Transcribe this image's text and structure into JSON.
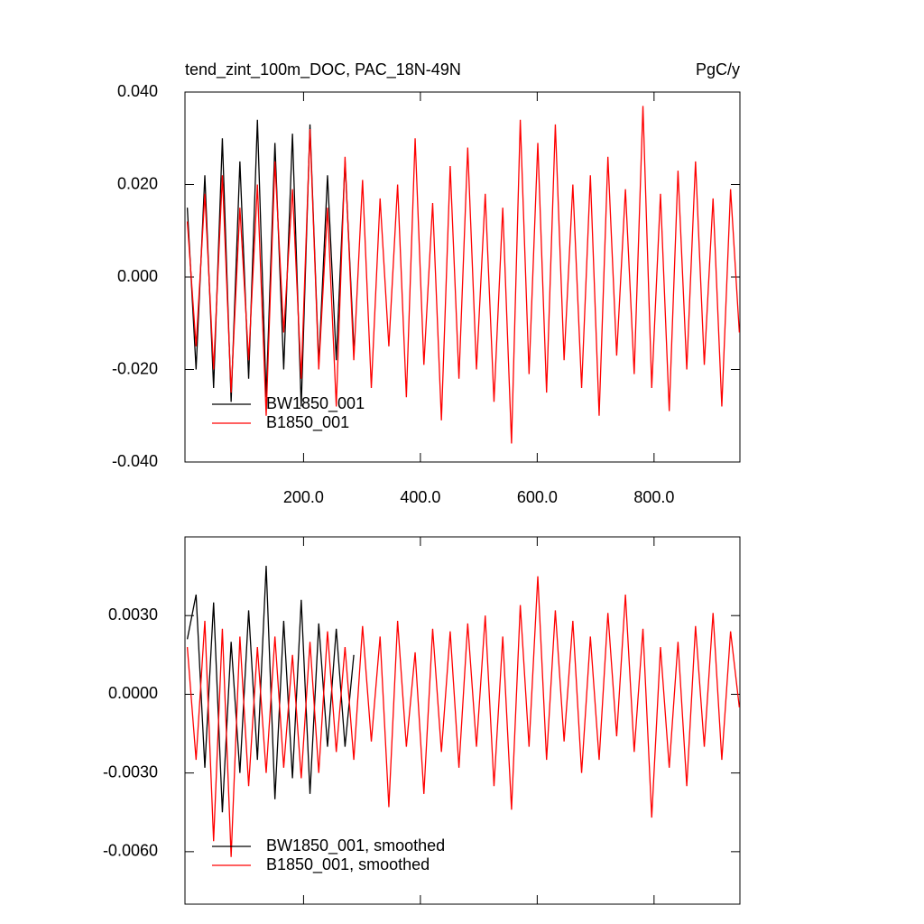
{
  "chart_data": [
    {
      "type": "line",
      "title": "tend_zint_100m_DOC, PAC_18N-49N",
      "units": "PgC/y",
      "x": [
        1,
        16,
        31,
        46,
        61,
        76,
        91,
        106,
        121,
        136,
        151,
        166,
        181,
        196,
        211,
        226,
        241,
        256,
        271,
        286,
        301,
        316,
        331,
        346,
        361,
        376,
        391,
        406,
        421,
        436,
        451,
        466,
        481,
        496,
        511,
        526,
        541,
        556,
        571,
        586,
        601,
        616,
        631,
        646,
        661,
        676,
        691,
        706,
        721,
        736,
        751,
        766,
        781,
        796,
        811,
        826,
        841,
        856,
        871,
        886,
        901,
        916,
        931,
        946
      ],
      "xlim": [
        -3,
        947
      ],
      "xticks": [
        {
          "value": 200,
          "label": "200.0"
        },
        {
          "value": 400,
          "label": "400.0"
        },
        {
          "value": 600,
          "label": "600.0"
        },
        {
          "value": 800,
          "label": "800.0"
        }
      ],
      "ylim": [
        -0.04,
        0.04
      ],
      "yticks": [
        {
          "value": -0.04,
          "label": "-0.040"
        },
        {
          "value": -0.02,
          "label": "-0.020"
        },
        {
          "value": 0,
          "label": "0.000"
        },
        {
          "value": 0.02,
          "label": "0.020"
        },
        {
          "value": 0.04,
          "label": "0.040"
        }
      ],
      "legend": "lower left",
      "series": [
        {
          "name": "BW1850_001",
          "color": "#000000",
          "values": [
            0.015,
            -0.02,
            0.022,
            -0.024,
            0.03,
            -0.027,
            0.025,
            -0.022,
            0.034,
            -0.026,
            0.029,
            -0.02,
            0.031,
            -0.028,
            0.033,
            -0.019,
            0.022,
            -0.018,
            0.025,
            -0.015,
            null,
            null,
            null,
            null,
            null,
            null,
            null,
            null,
            null,
            null,
            null,
            null,
            null,
            null,
            null,
            null,
            null,
            null,
            null,
            null,
            null,
            null,
            null,
            null,
            null,
            null,
            null,
            null,
            null,
            null,
            null,
            null,
            null,
            null,
            null,
            null,
            null,
            null,
            null,
            null,
            null,
            null,
            null,
            null
          ]
        },
        {
          "name": "B1850_001",
          "color": "#ff0000",
          "values": [
            0.012,
            -0.015,
            0.018,
            -0.02,
            0.022,
            -0.025,
            0.015,
            -0.018,
            0.02,
            -0.03,
            0.025,
            -0.012,
            0.019,
            -0.022,
            0.032,
            -0.02,
            0.015,
            -0.028,
            0.026,
            -0.018,
            0.021,
            -0.024,
            0.017,
            -0.015,
            0.02,
            -0.026,
            0.03,
            -0.019,
            0.016,
            -0.031,
            0.024,
            -0.022,
            0.028,
            -0.02,
            0.018,
            -0.027,
            0.015,
            -0.036,
            0.034,
            -0.021,
            0.029,
            -0.025,
            0.033,
            -0.018,
            0.02,
            -0.024,
            0.022,
            -0.03,
            0.026,
            -0.017,
            0.019,
            -0.021,
            0.037,
            -0.024,
            0.018,
            -0.029,
            0.023,
            -0.02,
            0.025,
            -0.019,
            0.017,
            -0.028,
            0.019,
            -0.012
          ]
        }
      ]
    },
    {
      "type": "line",
      "x": [
        1,
        16,
        31,
        46,
        61,
        76,
        91,
        106,
        121,
        136,
        151,
        166,
        181,
        196,
        211,
        226,
        241,
        256,
        271,
        286,
        301,
        316,
        331,
        346,
        361,
        376,
        391,
        406,
        421,
        436,
        451,
        466,
        481,
        496,
        511,
        526,
        541,
        556,
        571,
        586,
        601,
        616,
        631,
        646,
        661,
        676,
        691,
        706,
        721,
        736,
        751,
        766,
        781,
        796,
        811,
        826,
        841,
        856,
        871,
        886,
        901,
        916,
        931,
        946
      ],
      "xlim": [
        -3,
        947
      ],
      "xticks": [
        200,
        400,
        600,
        800
      ],
      "xtick_labels": false,
      "ylim": [
        -0.008,
        0.006
      ],
      "yticks": [
        {
          "value": -0.006,
          "label": "-0.0060"
        },
        {
          "value": -0.003,
          "label": "-0.0030"
        },
        {
          "value": 0,
          "label": "0.0000"
        },
        {
          "value": 0.003,
          "label": "0.0030"
        }
      ],
      "legend": "lower left",
      "series": [
        {
          "name": "BW1850_001, smoothed",
          "color": "#000000",
          "values": [
            0.0021,
            0.0038,
            -0.0028,
            0.0035,
            -0.0045,
            0.002,
            -0.003,
            0.0032,
            -0.0025,
            0.0049,
            -0.004,
            0.0028,
            -0.0032,
            0.0036,
            -0.0038,
            0.0027,
            -0.002,
            0.0025,
            -0.002,
            0.0015,
            null,
            null,
            null,
            null,
            null,
            null,
            null,
            null,
            null,
            null,
            null,
            null,
            null,
            null,
            null,
            null,
            null,
            null,
            null,
            null,
            null,
            null,
            null,
            null,
            null,
            null,
            null,
            null,
            null,
            null,
            null,
            null,
            null,
            null,
            null,
            null,
            null,
            null,
            null,
            null,
            null,
            null,
            null,
            null
          ]
        },
        {
          "name": "B1850_001, smoothed",
          "color": "#ff0000",
          "values": [
            0.0018,
            -0.0025,
            0.0028,
            -0.0056,
            0.0025,
            -0.0062,
            0.0022,
            -0.0035,
            0.0018,
            -0.003,
            0.0022,
            -0.0028,
            0.0015,
            -0.0032,
            0.002,
            -0.003,
            0.0024,
            -0.0022,
            0.0018,
            -0.0025,
            0.0026,
            -0.0018,
            0.0022,
            -0.0043,
            0.0028,
            -0.002,
            0.0016,
            -0.0038,
            0.0025,
            -0.0022,
            0.0024,
            -0.0028,
            0.0027,
            -0.002,
            0.003,
            -0.0035,
            0.0022,
            -0.0044,
            0.0034,
            -0.002,
            0.0045,
            -0.0025,
            0.0032,
            -0.0018,
            0.0028,
            -0.003,
            0.0022,
            -0.0025,
            0.0031,
            -0.0016,
            0.0038,
            -0.0022,
            0.0025,
            -0.0047,
            0.0018,
            -0.0028,
            0.002,
            -0.0035,
            0.0026,
            -0.002,
            0.0031,
            -0.0025,
            0.0024,
            -0.0005
          ]
        }
      ]
    }
  ]
}
